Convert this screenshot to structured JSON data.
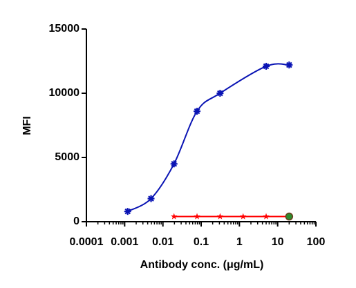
{
  "chart_data": {
    "type": "scatter",
    "xlabel": "Antibody conc. (μg/mL)",
    "ylabel": "MFI",
    "xscale": "log",
    "xlim": [
      0.0001,
      100
    ],
    "xticks": [
      0.0001,
      0.001,
      0.01,
      0.1,
      1,
      10,
      100
    ],
    "ylim": [
      0,
      15000
    ],
    "yticks": [
      0,
      5000,
      10000,
      15000
    ],
    "series": [
      {
        "color": "#0a14b4",
        "marker": "asterisk",
        "line": "curve",
        "x": [
          0.0012,
          0.0049,
          0.0195,
          0.078,
          0.3125,
          5,
          20
        ],
        "values": [
          800,
          1800,
          4500,
          8600,
          10000,
          12100,
          12200
        ]
      },
      {
        "color": "#ff0000",
        "marker": "star",
        "line": "straight",
        "x": [
          0.0195,
          0.078,
          0.3125,
          1.25,
          5,
          20
        ],
        "values": [
          400,
          400,
          400,
          400,
          400,
          400
        ]
      },
      {
        "color": "#2e8b2e",
        "marker": "circle",
        "line": "none",
        "x": [
          20
        ],
        "values": [
          400
        ]
      }
    ]
  }
}
